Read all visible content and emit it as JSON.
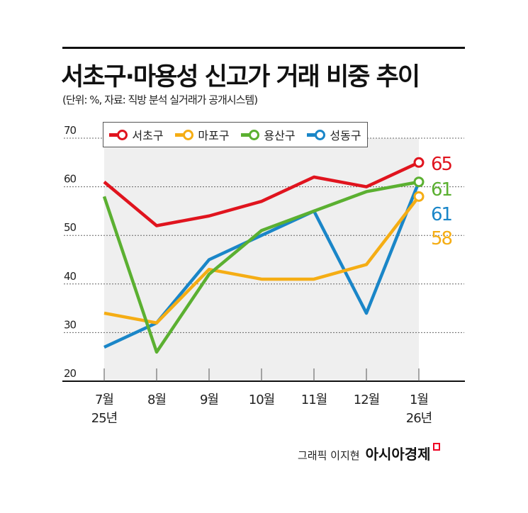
{
  "chart_data": {
    "type": "line",
    "title": "서초구·마용성 신고가 거래 비중 추이",
    "subtitle": "(단위: %, 자료: 직방 분석 실거래가 공개시스템)",
    "categories": [
      [
        "7월",
        "25년"
      ],
      [
        "8월"
      ],
      [
        "9월"
      ],
      [
        "10월"
      ],
      [
        "11월"
      ],
      [
        "12월"
      ],
      [
        "1월",
        "26년"
      ]
    ],
    "ylim": [
      20,
      70
    ],
    "yticks": [
      "20",
      "30",
      "40",
      "50",
      "60",
      "70"
    ],
    "grid": true,
    "legend": "top",
    "series": [
      {
        "name": "서초구",
        "color": "#e0141e",
        "values": [
          61,
          52,
          54,
          57,
          62,
          60,
          65
        ],
        "end_label": "65"
      },
      {
        "name": "마포구",
        "color": "#f5ad14",
        "values": [
          34,
          32,
          43,
          41,
          41,
          44,
          58
        ],
        "end_label": "58"
      },
      {
        "name": "용산구",
        "color": "#5bb031",
        "values": [
          58,
          26,
          42,
          51,
          55,
          59,
          61
        ],
        "end_label": "61"
      },
      {
        "name": "성동구",
        "color": "#1a86c8",
        "values": [
          27,
          32,
          45,
          50,
          55,
          34,
          61
        ],
        "end_label": "61"
      }
    ]
  },
  "footer": {
    "credit": "그래픽 이지현",
    "brand": "아시아경제"
  }
}
